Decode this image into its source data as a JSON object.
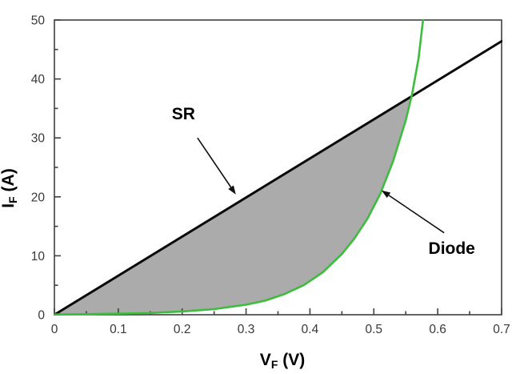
{
  "figure": {
    "background": "#ffffff",
    "plot_bg": "#ffffff",
    "box_color": "#404040",
    "tick_label_color": "#383838"
  },
  "chart_data": {
    "type": "line",
    "title": "",
    "xlabel": {
      "main": "V",
      "sub": "F",
      "rest": " (V)"
    },
    "ylabel": {
      "main": "I",
      "sub": "F",
      "rest": " (A)"
    },
    "xlim": [
      0,
      0.7
    ],
    "ylim": [
      0,
      50
    ],
    "grid": false,
    "legend_position": "none",
    "x_major_ticks": [
      0,
      0.1,
      0.2,
      0.3,
      0.4,
      0.5,
      0.6,
      0.7
    ],
    "x_tick_labels": [
      "0",
      "0.1",
      "0.2",
      "0.3",
      "0.4",
      "0.5",
      "0.6",
      "0.7"
    ],
    "x_minor_ticks": [
      0.05,
      0.15,
      0.25,
      0.35,
      0.45,
      0.55,
      0.65
    ],
    "y_major_ticks": [
      0,
      10,
      20,
      30,
      40,
      50
    ],
    "y_tick_labels": [
      "0",
      "10",
      "20",
      "30",
      "40",
      "50"
    ],
    "y_minor_ticks": [
      5,
      15,
      25,
      35,
      45
    ],
    "series": [
      {
        "name": "SR",
        "color": "#0a0a0a",
        "width": 3,
        "x": [
          0,
          0.7
        ],
        "y": [
          0,
          46.4
        ]
      },
      {
        "name": "Diode",
        "color": "#3cbd3c",
        "width": 2.6,
        "x": [
          0,
          0.05,
          0.1,
          0.15,
          0.2,
          0.25,
          0.3,
          0.33,
          0.36,
          0.39,
          0.42,
          0.45,
          0.47,
          0.49,
          0.51,
          0.53,
          0.55,
          0.56,
          0.57,
          0.577
        ],
        "y": [
          0.05,
          0.1,
          0.18,
          0.3,
          0.55,
          0.95,
          1.7,
          2.4,
          3.5,
          5.0,
          7.2,
          10.3,
          13.0,
          16.3,
          20.5,
          26.0,
          33.0,
          37.5,
          43.5,
          50.0
        ]
      }
    ],
    "shaded_region": {
      "between": [
        "SR",
        "Diode"
      ],
      "from_x": 0,
      "to_x": "intersection",
      "fill": "#ababab",
      "note": "area between SR line and diode curve up to their crossing near V=0.56, I=37"
    },
    "annotations": [
      {
        "label": "SR",
        "text_x": 0.202,
        "text_y": 34.1,
        "arrow_from_x": 0.224,
        "arrow_from_y": 30.0,
        "arrow_to_x": 0.284,
        "arrow_to_y": 20.4
      },
      {
        "label": "Diode",
        "text_x": 0.622,
        "text_y": 11.3,
        "arrow_from_x": 0.61,
        "arrow_from_y": 13.9,
        "arrow_to_x": 0.512,
        "arrow_to_y": 21.1
      }
    ]
  }
}
